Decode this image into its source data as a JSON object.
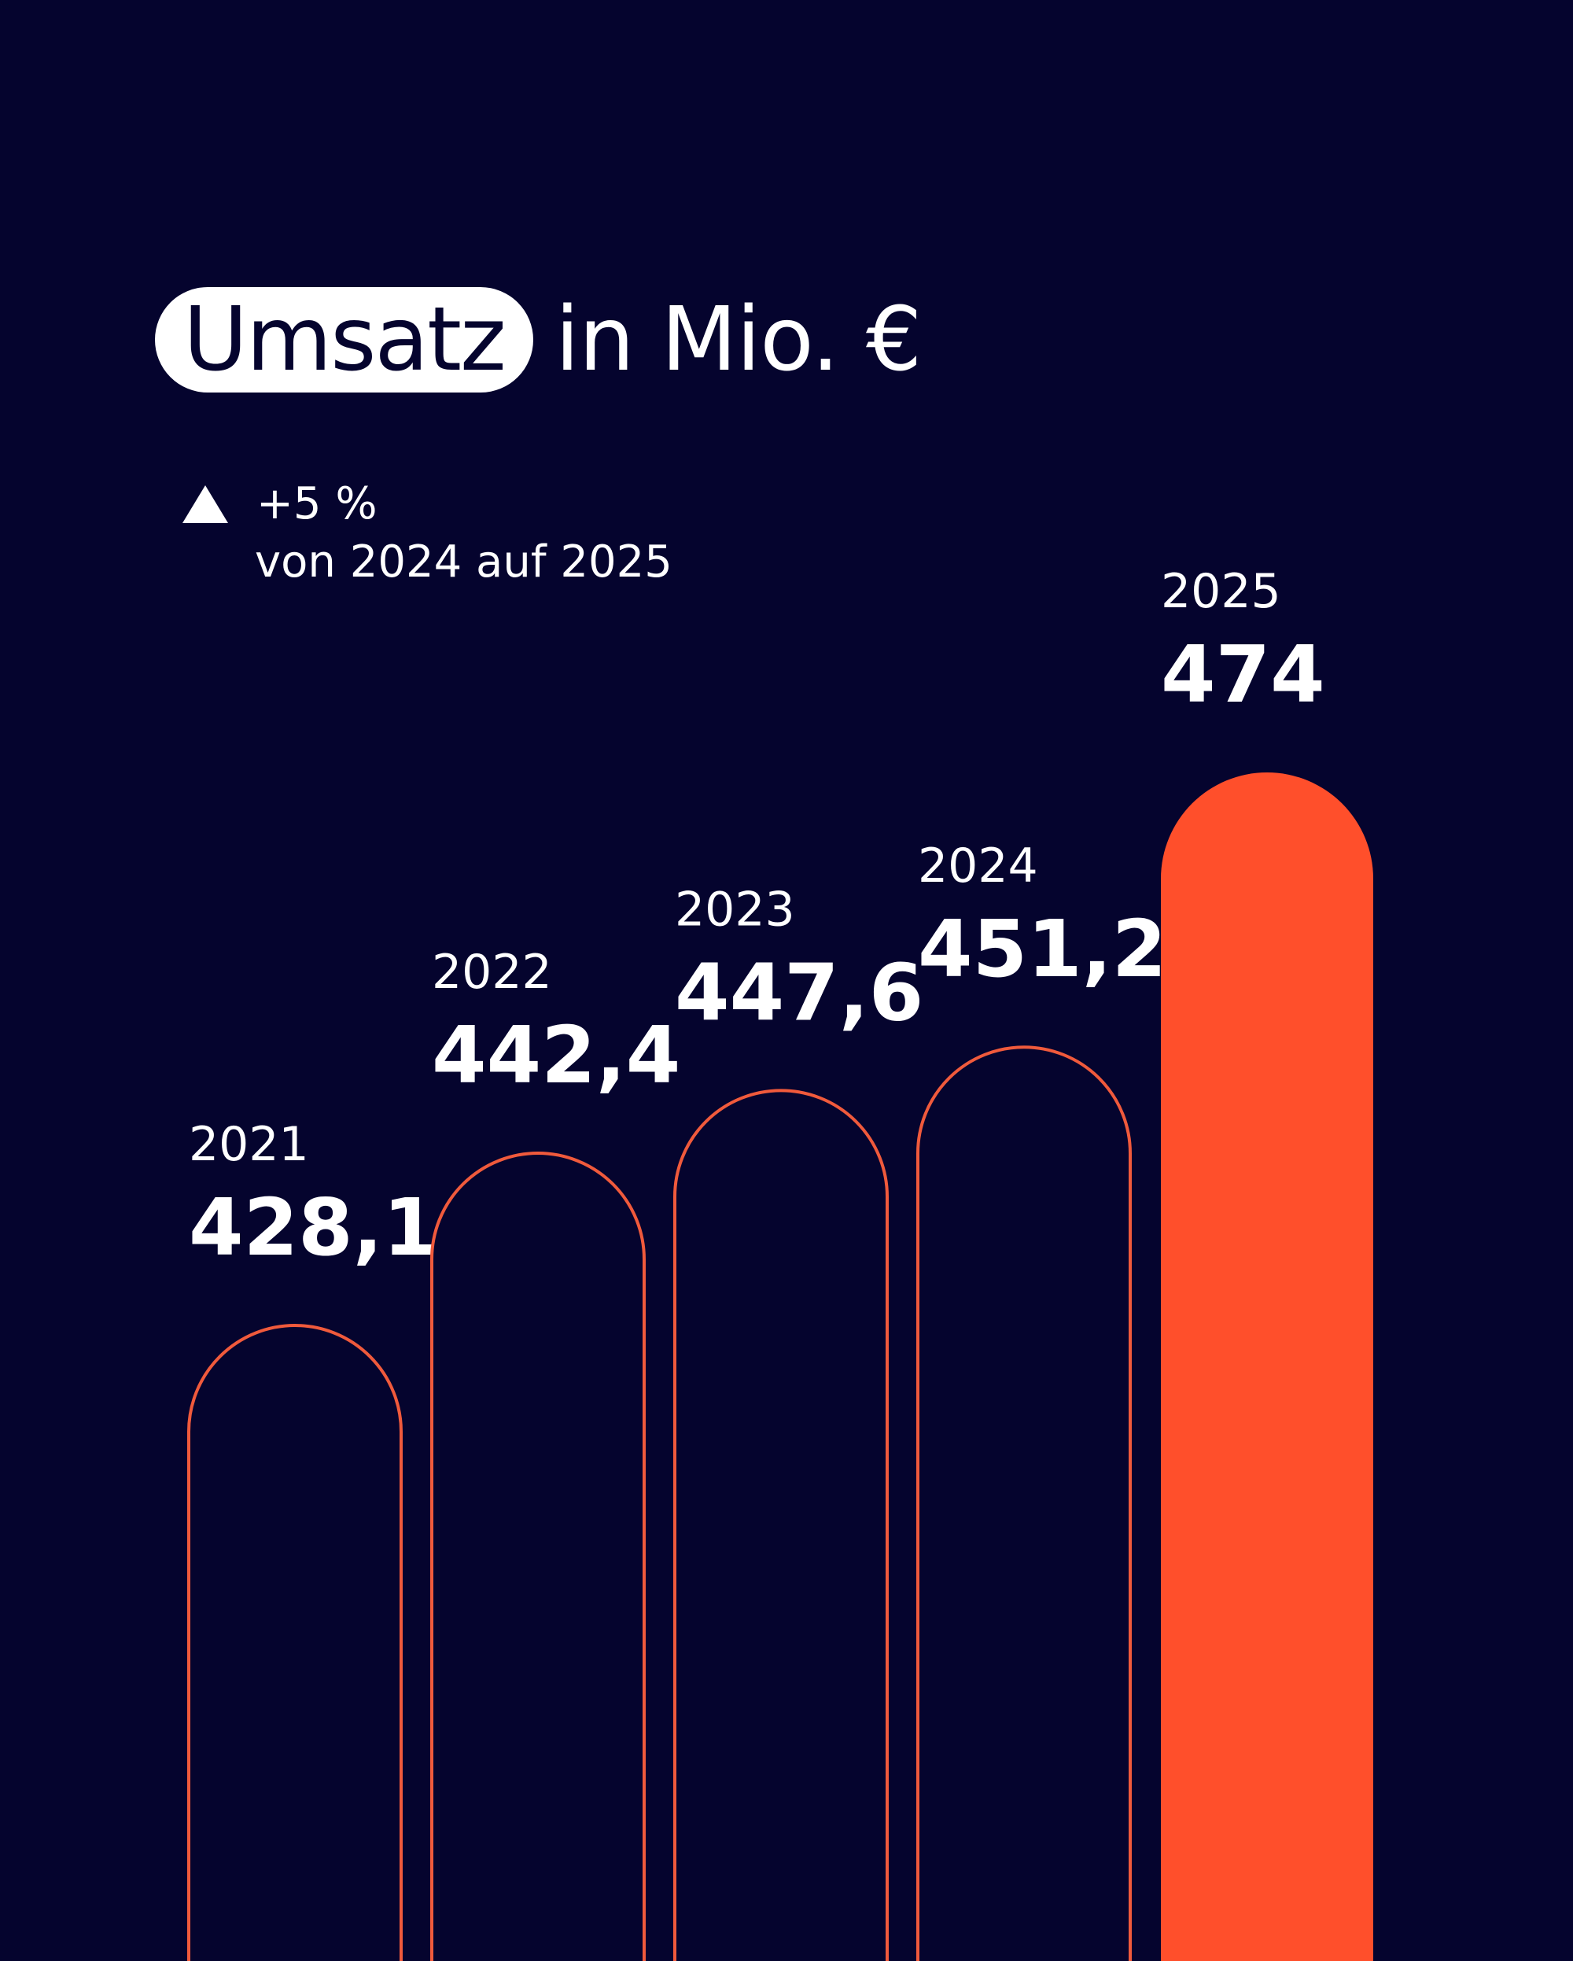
{
  "title": {
    "highlight": "Umsatz",
    "rest": "in Mio. €"
  },
  "change": {
    "value": "+5 %",
    "description": "von 2024 auf 2025",
    "direction_icon": "triangle-up-icon"
  },
  "colors": {
    "background": "#05042e",
    "outline": "#f05a3c",
    "highlight_fill": "#ff4f2b",
    "text": "#ffffff"
  },
  "chart_data": {
    "type": "bar",
    "categories": [
      "2021",
      "2022",
      "2023",
      "2024",
      "2025"
    ],
    "values": [
      428.1,
      442.4,
      447.6,
      451.2,
      474
    ],
    "value_labels": [
      "428,1",
      "442,4",
      "447,6",
      "451,2",
      "474"
    ],
    "highlighted_category": "2025",
    "title": "Umsatz in Mio. €",
    "xlabel": "",
    "ylabel": ""
  }
}
